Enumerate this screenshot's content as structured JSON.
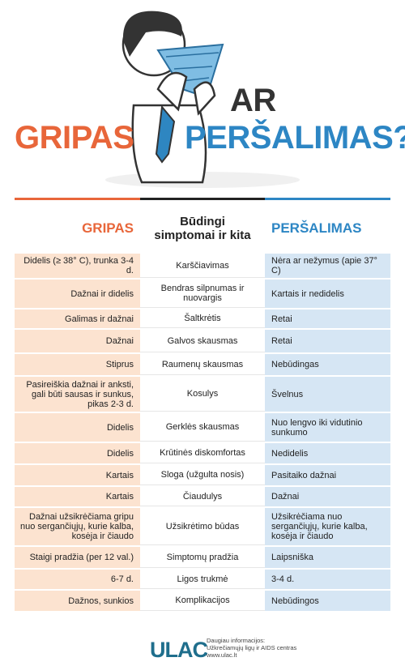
{
  "header": {
    "title_left": "GRIPAS",
    "title_ar": "AR",
    "title_right": "PERŠALIMAS?"
  },
  "table": {
    "headers": [
      "GRIPAS",
      "Būdingi simptomai ir kita",
      "PERŠALIMAS"
    ],
    "rows": [
      [
        "Didelis (≥ 38° C), trunka 3-4 d.",
        "Karščiavimas",
        "Nėra ar nežymus (apie 37° C)"
      ],
      [
        "Dažnai ir didelis",
        "Bendras silpnumas ir nuovargis",
        "Kartais ir nedidelis"
      ],
      [
        "Galimas ir dažnai",
        "Šaltkrėtis",
        "Retai"
      ],
      [
        "Dažnai",
        "Galvos skausmas",
        "Retai"
      ],
      [
        "Stiprus",
        "Raumenų skausmas",
        "Nebūdingas"
      ],
      [
        "Pasireiškia dažnai ir anksti, gali būti sausas ir sunkus, pikas 2-3 d.",
        "Kosulys",
        "Švelnus"
      ],
      [
        "Didelis",
        "Gerklės skausmas",
        "Nuo lengvo iki vidutinio sunkumo"
      ],
      [
        "Didelis",
        "Krūtinės diskomfortas",
        "Nedidelis"
      ],
      [
        "Kartais",
        "Sloga (užgulta nosis)",
        "Pasitaiko dažnai"
      ],
      [
        "Kartais",
        "Čiaudulys",
        "Dažnai"
      ],
      [
        "Dažnai užsikrėčiama gripu nuo sergančiųjų, kurie kalba, kosėja ir čiaudo",
        "Užsikrėtimo būdas",
        "Užsikrėčiama nuo sergančiųjų, kurie kalba, kosėja ir čiaudo"
      ],
      [
        "Staigi pradžia (per 12 val.)",
        "Simptomų pradžia",
        "Laipsniška"
      ],
      [
        "6-7 d.",
        "Ligos trukmė",
        "3-4 d."
      ],
      [
        "Dažnos, sunkios",
        "Komplikacijos",
        "Nebūdingos"
      ]
    ]
  },
  "footer": {
    "logo": "ULAC",
    "lines": [
      "Daugiau informacijos:",
      "Užkrečiamųjų ligų ir AIDS centras",
      "www.ulac.lt"
    ]
  }
}
